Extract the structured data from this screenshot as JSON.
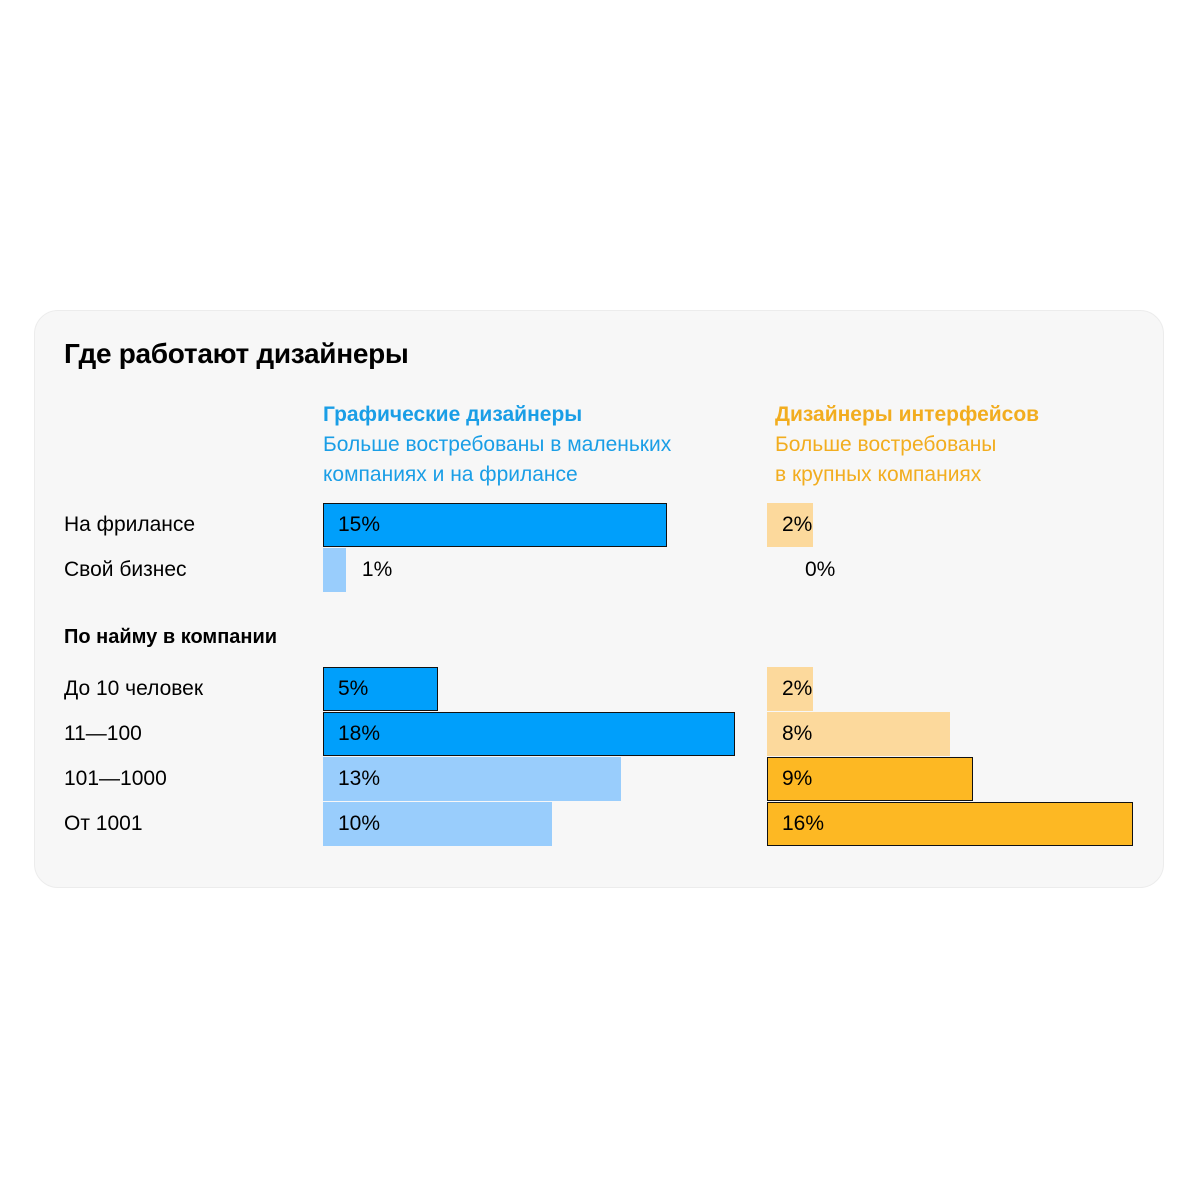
{
  "title": "Где работают дизайнеры",
  "columns": {
    "graphic": {
      "name": "Графические дизайнеры",
      "desc_line1": "Больше востребованы в маленьких",
      "desc_line2": "компаниях и на фрилансе"
    },
    "ui": {
      "name": "Дизайнеры интерфейсов",
      "desc_line1": "Больше востребованы",
      "desc_line2": "в крупных компаниях"
    }
  },
  "section_label": "По найму в компании",
  "colors": {
    "blue_strong": "#009ffb",
    "blue_light": "#99cdfc",
    "orange_strong": "#fdb823",
    "orange_light": "#fcd99c"
  },
  "chart_data": {
    "type": "bar",
    "orientation": "horizontal",
    "categories": [
      "На фрилансе",
      "Свой бизнес",
      "До 10 человек",
      "11—100",
      "101—1000",
      "От 1001"
    ],
    "series": [
      {
        "name": "Графические дизайнеры",
        "values": [
          15,
          1,
          5,
          18,
          13,
          10
        ],
        "labels": [
          "15%",
          "1%",
          "5%",
          "18%",
          "13%",
          "10%"
        ],
        "highlighted": [
          true,
          false,
          true,
          true,
          false,
          false
        ]
      },
      {
        "name": "Дизайнеры интерфейсов",
        "values": [
          2,
          0,
          2,
          8,
          9,
          16
        ],
        "labels": [
          "2%",
          "0%",
          "2%",
          "8%",
          "9%",
          "16%"
        ],
        "highlighted": [
          false,
          false,
          false,
          false,
          true,
          true
        ]
      }
    ],
    "unit": "%"
  }
}
